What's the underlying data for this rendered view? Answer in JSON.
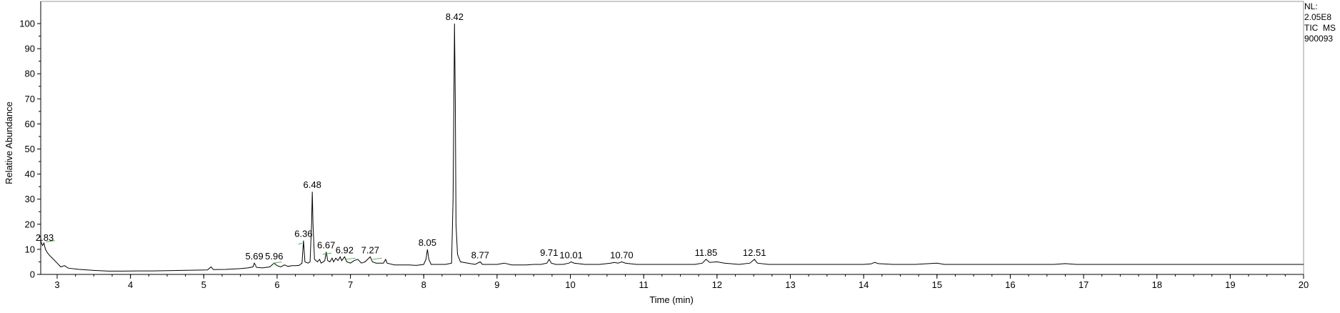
{
  "info": {
    "line1": "NL:",
    "line2": "2.05E8",
    "line3": "TIC  MS",
    "line4": "900093"
  },
  "chart_data": {
    "type": "line",
    "xlabel": "Time (min)",
    "ylabel": "Relative Abundance",
    "xlim": [
      2.75,
      20
    ],
    "ylim": [
      0,
      105
    ],
    "x_ticks": [
      3,
      4,
      5,
      6,
      7,
      8,
      9,
      10,
      11,
      12,
      13,
      14,
      15,
      16,
      17,
      18,
      19,
      20
    ],
    "y_ticks": [
      0,
      10,
      20,
      30,
      40,
      50,
      60,
      70,
      80,
      90,
      100
    ],
    "line_color": "#000000",
    "baseline_marker_color": "#4caf50",
    "peak_labels": [
      {
        "x": 2.83,
        "y": 12,
        "label": "2.83"
      },
      {
        "x": 5.69,
        "y": 4.5,
        "label": "5.69"
      },
      {
        "x": 5.96,
        "y": 4.5,
        "label": "5.96"
      },
      {
        "x": 6.36,
        "y": 13.5,
        "label": "6.36"
      },
      {
        "x": 6.48,
        "y": 33,
        "label": "6.48"
      },
      {
        "x": 6.67,
        "y": 9,
        "label": "6.67"
      },
      {
        "x": 6.92,
        "y": 7,
        "label": "6.92"
      },
      {
        "x": 7.27,
        "y": 7,
        "label": "7.27"
      },
      {
        "x": 8.05,
        "y": 10,
        "label": "8.05"
      },
      {
        "x": 8.42,
        "y": 100,
        "label": "8.42"
      },
      {
        "x": 8.77,
        "y": 5,
        "label": "8.77"
      },
      {
        "x": 9.71,
        "y": 6,
        "label": "9.71"
      },
      {
        "x": 10.01,
        "y": 5,
        "label": "10.01"
      },
      {
        "x": 10.7,
        "y": 5,
        "label": "10.70"
      },
      {
        "x": 11.85,
        "y": 6,
        "label": "11.85"
      },
      {
        "x": 12.51,
        "y": 6,
        "label": "12.51"
      }
    ],
    "trace": [
      [
        2.75,
        15
      ],
      [
        2.78,
        13
      ],
      [
        2.8,
        11.5
      ],
      [
        2.82,
        12.5
      ],
      [
        2.84,
        10
      ],
      [
        2.87,
        8.5
      ],
      [
        2.9,
        7.5
      ],
      [
        2.95,
        6
      ],
      [
        3.0,
        4.5
      ],
      [
        3.05,
        3
      ],
      [
        3.1,
        3.5
      ],
      [
        3.15,
        2.5
      ],
      [
        3.3,
        2
      ],
      [
        3.5,
        1.6
      ],
      [
        3.7,
        1.3
      ],
      [
        3.9,
        1.3
      ],
      [
        4.1,
        1.4
      ],
      [
        4.3,
        1.4
      ],
      [
        4.5,
        1.5
      ],
      [
        4.7,
        1.6
      ],
      [
        4.9,
        1.7
      ],
      [
        5.05,
        1.8
      ],
      [
        5.1,
        3
      ],
      [
        5.13,
        1.9
      ],
      [
        5.3,
        2
      ],
      [
        5.5,
        2.3
      ],
      [
        5.6,
        2.6
      ],
      [
        5.67,
        3
      ],
      [
        5.69,
        4.5
      ],
      [
        5.72,
        2.8
      ],
      [
        5.8,
        2.6
      ],
      [
        5.9,
        3
      ],
      [
        5.96,
        4.5
      ],
      [
        6.0,
        3.5
      ],
      [
        6.05,
        3
      ],
      [
        6.1,
        3.8
      ],
      [
        6.15,
        3.2
      ],
      [
        6.2,
        3.5
      ],
      [
        6.25,
        3.5
      ],
      [
        6.3,
        3.6
      ],
      [
        6.34,
        4.5
      ],
      [
        6.36,
        13.5
      ],
      [
        6.38,
        5
      ],
      [
        6.42,
        4.5
      ],
      [
        6.45,
        5
      ],
      [
        6.47,
        20
      ],
      [
        6.48,
        33
      ],
      [
        6.49,
        20
      ],
      [
        6.51,
        6
      ],
      [
        6.55,
        5
      ],
      [
        6.58,
        6
      ],
      [
        6.6,
        4.5
      ],
      [
        6.63,
        5
      ],
      [
        6.65,
        5.5
      ],
      [
        6.67,
        9
      ],
      [
        6.69,
        5.5
      ],
      [
        6.72,
        5
      ],
      [
        6.75,
        6.5
      ],
      [
        6.77,
        5
      ],
      [
        6.8,
        6.5
      ],
      [
        6.83,
        5.5
      ],
      [
        6.86,
        7
      ],
      [
        6.88,
        5.5
      ],
      [
        6.92,
        7
      ],
      [
        6.95,
        5
      ],
      [
        7.0,
        4.5
      ],
      [
        7.05,
        5.5
      ],
      [
        7.1,
        6
      ],
      [
        7.15,
        4.5
      ],
      [
        7.2,
        5
      ],
      [
        7.27,
        7
      ],
      [
        7.3,
        5
      ],
      [
        7.35,
        4.5
      ],
      [
        7.4,
        4.5
      ],
      [
        7.45,
        4.5
      ],
      [
        7.48,
        6
      ],
      [
        7.5,
        4.5
      ],
      [
        7.6,
        3.8
      ],
      [
        7.7,
        3.8
      ],
      [
        7.8,
        3.8
      ],
      [
        7.9,
        3.6
      ],
      [
        8.0,
        4
      ],
      [
        8.03,
        6
      ],
      [
        8.05,
        10
      ],
      [
        8.07,
        6
      ],
      [
        8.1,
        4
      ],
      [
        8.2,
        4
      ],
      [
        8.3,
        4
      ],
      [
        8.38,
        4.5
      ],
      [
        8.4,
        30
      ],
      [
        8.42,
        100
      ],
      [
        8.43,
        70
      ],
      [
        8.44,
        20
      ],
      [
        8.46,
        8
      ],
      [
        8.5,
        5
      ],
      [
        8.6,
        4.5
      ],
      [
        8.7,
        4
      ],
      [
        8.77,
        5
      ],
      [
        8.8,
        4
      ],
      [
        8.9,
        4
      ],
      [
        9.0,
        4
      ],
      [
        9.1,
        4.5
      ],
      [
        9.2,
        3.8
      ],
      [
        9.3,
        3.8
      ],
      [
        9.4,
        3.8
      ],
      [
        9.5,
        4
      ],
      [
        9.6,
        4
      ],
      [
        9.68,
        4.5
      ],
      [
        9.71,
        6
      ],
      [
        9.74,
        4.5
      ],
      [
        9.8,
        4
      ],
      [
        9.9,
        4
      ],
      [
        9.98,
        4.5
      ],
      [
        10.01,
        5
      ],
      [
        10.05,
        4.5
      ],
      [
        10.2,
        4
      ],
      [
        10.4,
        4
      ],
      [
        10.55,
        4.5
      ],
      [
        10.6,
        4.8
      ],
      [
        10.65,
        4.5
      ],
      [
        10.7,
        5
      ],
      [
        10.75,
        4.5
      ],
      [
        10.9,
        4
      ],
      [
        11.1,
        4
      ],
      [
        11.3,
        4
      ],
      [
        11.5,
        4
      ],
      [
        11.7,
        4
      ],
      [
        11.8,
        4.5
      ],
      [
        11.85,
        6
      ],
      [
        11.9,
        4.8
      ],
      [
        12.0,
        5
      ],
      [
        12.1,
        4.5
      ],
      [
        12.3,
        4
      ],
      [
        12.45,
        4.5
      ],
      [
        12.51,
        6
      ],
      [
        12.55,
        4.5
      ],
      [
        12.7,
        4
      ],
      [
        13.0,
        4
      ],
      [
        13.5,
        4
      ],
      [
        14.0,
        4
      ],
      [
        14.1,
        4.2
      ],
      [
        14.15,
        4.8
      ],
      [
        14.2,
        4.3
      ],
      [
        14.4,
        4
      ],
      [
        14.7,
        4
      ],
      [
        15.0,
        4.5
      ],
      [
        15.1,
        4
      ],
      [
        15.4,
        4
      ],
      [
        15.8,
        4
      ],
      [
        16.2,
        4
      ],
      [
        16.6,
        4
      ],
      [
        16.75,
        4.3
      ],
      [
        16.9,
        4
      ],
      [
        17.2,
        4
      ],
      [
        17.6,
        4
      ],
      [
        18.0,
        4
      ],
      [
        18.4,
        4
      ],
      [
        18.8,
        4
      ],
      [
        19.2,
        4
      ],
      [
        19.6,
        4
      ],
      [
        20.0,
        4
      ]
    ],
    "baseline_marks": [
      [
        2.85,
        13,
        2.97,
        13.5
      ],
      [
        5.95,
        4.5,
        6.06,
        5
      ],
      [
        6.29,
        12,
        6.34,
        12.5
      ],
      [
        6.62,
        8,
        6.74,
        8.5
      ],
      [
        6.94,
        6,
        7.07,
        6.5
      ],
      [
        7.3,
        6,
        7.43,
        6.5
      ]
    ]
  }
}
